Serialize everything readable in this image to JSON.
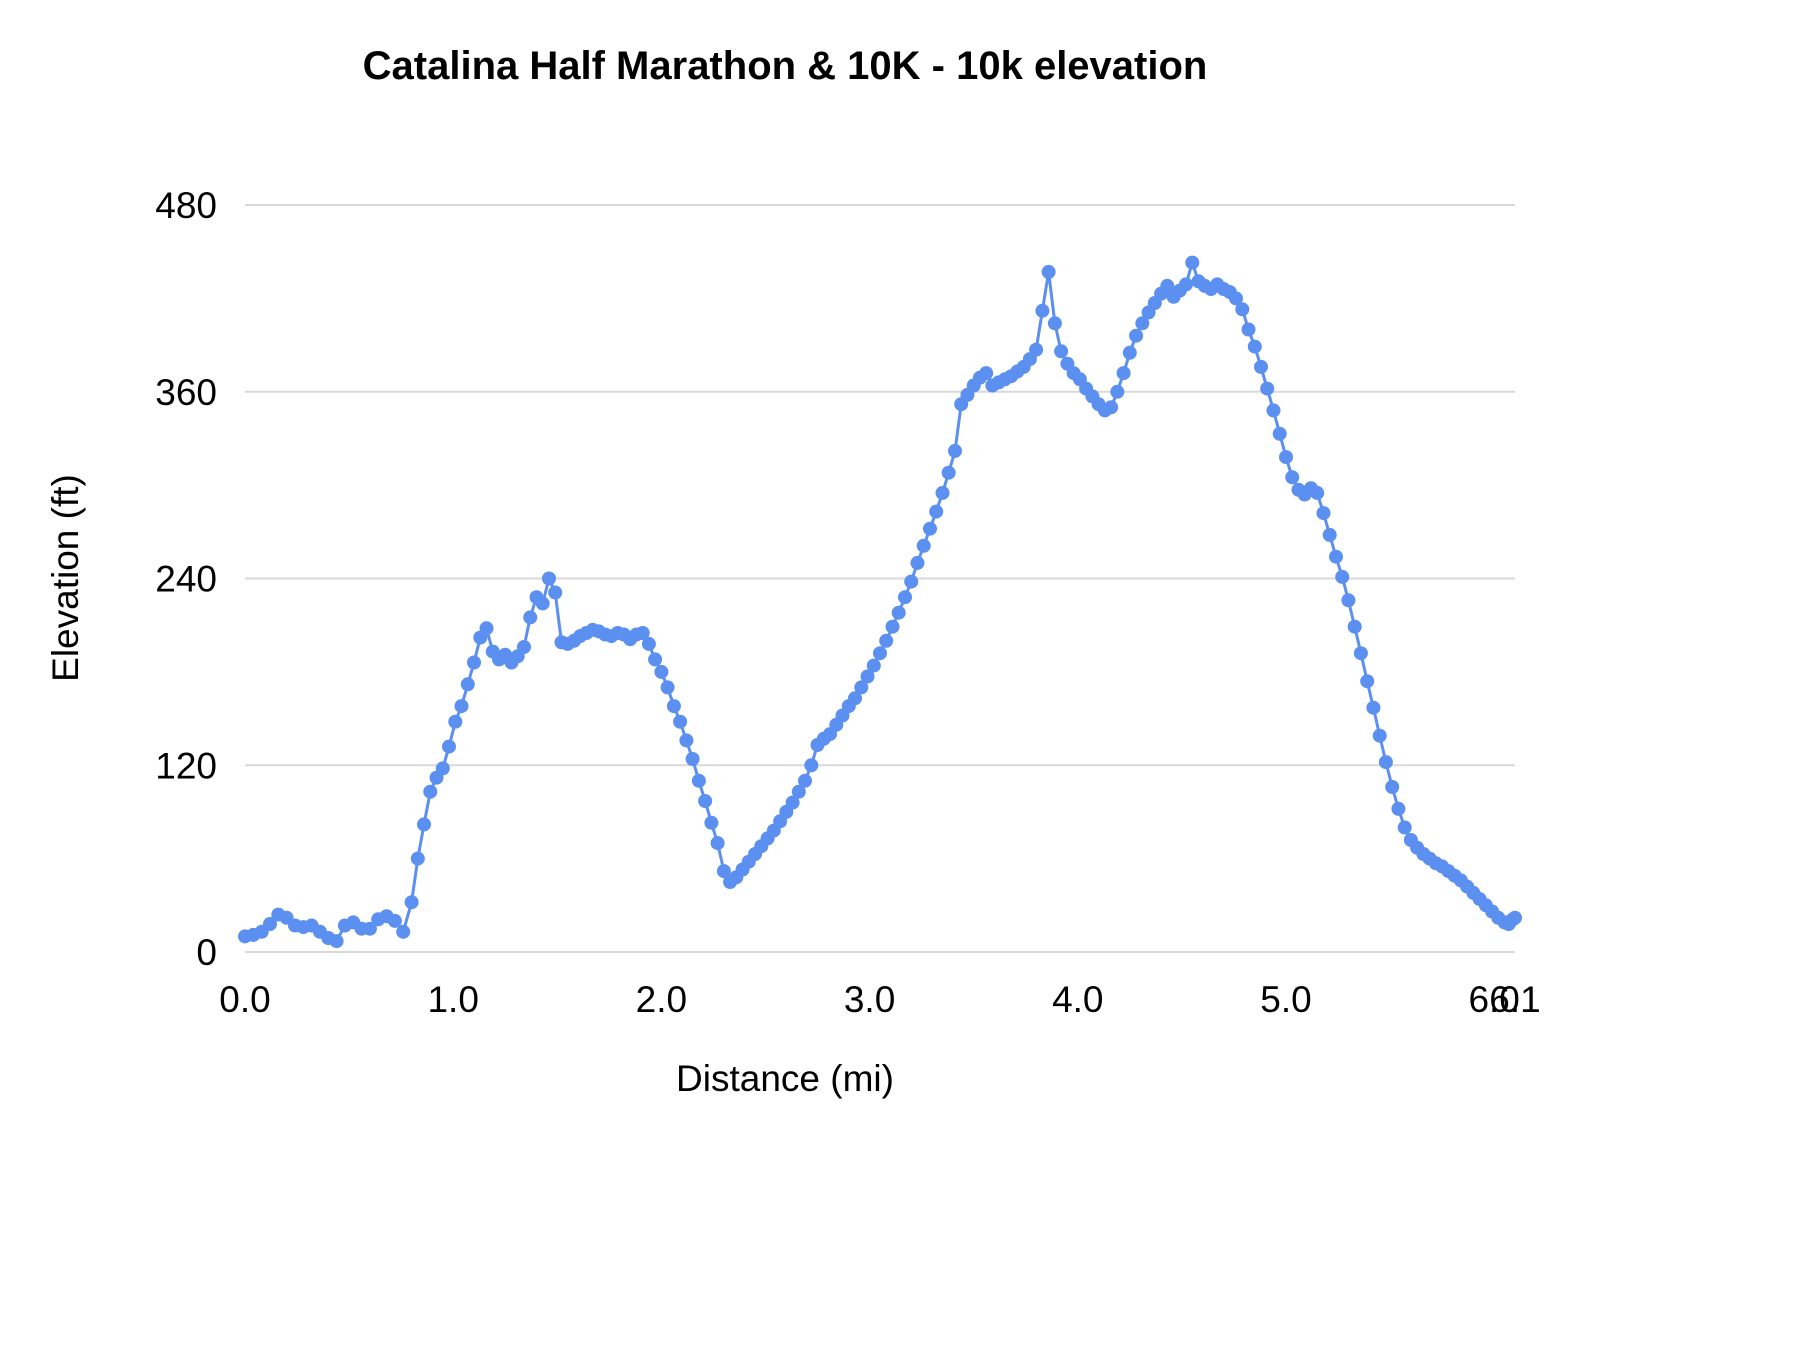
{
  "chart_data": {
    "type": "line",
    "title": "Catalina Half Marathon & 10K - 10k elevation",
    "xlabel": "Distance (mi)",
    "ylabel": "Elevation (ft)",
    "xlim": [
      0,
      6.1
    ],
    "ylim": [
      0,
      480
    ],
    "x_ticks": [
      {
        "v": 0.0,
        "label": "0.0"
      },
      {
        "v": 1.0,
        "label": "1.0"
      },
      {
        "v": 2.0,
        "label": "2.0"
      },
      {
        "v": 3.0,
        "label": "3.0"
      },
      {
        "v": 4.0,
        "label": "4.0"
      },
      {
        "v": 5.0,
        "label": "5.0"
      },
      {
        "v": 6.0,
        "label": "6.0"
      },
      {
        "v": 6.1,
        "label": "6.1"
      }
    ],
    "y_ticks": [
      0,
      120,
      240,
      360,
      480
    ],
    "grid": true,
    "grid_color": "#d9d9d9",
    "legend": "none",
    "line_color": "#5b8ff0",
    "marker": "circle",
    "marker_radius": 7,
    "points": [
      [
        0.0,
        10
      ],
      [
        0.04,
        11
      ],
      [
        0.08,
        13
      ],
      [
        0.12,
        18
      ],
      [
        0.16,
        24
      ],
      [
        0.2,
        22
      ],
      [
        0.24,
        17
      ],
      [
        0.28,
        16
      ],
      [
        0.32,
        17
      ],
      [
        0.36,
        13
      ],
      [
        0.4,
        9
      ],
      [
        0.44,
        7
      ],
      [
        0.48,
        17
      ],
      [
        0.52,
        19
      ],
      [
        0.56,
        15
      ],
      [
        0.6,
        15
      ],
      [
        0.64,
        21
      ],
      [
        0.68,
        23
      ],
      [
        0.72,
        20
      ],
      [
        0.76,
        13
      ],
      [
        0.8,
        32
      ],
      [
        0.83,
        60
      ],
      [
        0.86,
        82
      ],
      [
        0.89,
        103
      ],
      [
        0.92,
        112
      ],
      [
        0.95,
        118
      ],
      [
        0.98,
        132
      ],
      [
        1.01,
        148
      ],
      [
        1.04,
        158
      ],
      [
        1.07,
        172
      ],
      [
        1.1,
        186
      ],
      [
        1.13,
        202
      ],
      [
        1.16,
        208
      ],
      [
        1.19,
        193
      ],
      [
        1.22,
        188
      ],
      [
        1.25,
        191
      ],
      [
        1.28,
        186
      ],
      [
        1.31,
        190
      ],
      [
        1.34,
        196
      ],
      [
        1.37,
        215
      ],
      [
        1.4,
        228
      ],
      [
        1.43,
        224
      ],
      [
        1.46,
        240
      ],
      [
        1.49,
        231
      ],
      [
        1.52,
        199
      ],
      [
        1.55,
        198
      ],
      [
        1.58,
        200
      ],
      [
        1.61,
        203
      ],
      [
        1.64,
        205
      ],
      [
        1.67,
        207
      ],
      [
        1.7,
        206
      ],
      [
        1.73,
        204
      ],
      [
        1.76,
        203
      ],
      [
        1.79,
        205
      ],
      [
        1.82,
        204
      ],
      [
        1.85,
        201
      ],
      [
        1.88,
        204
      ],
      [
        1.91,
        205
      ],
      [
        1.94,
        198
      ],
      [
        1.97,
        188
      ],
      [
        2.0,
        180
      ],
      [
        2.03,
        170
      ],
      [
        2.06,
        158
      ],
      [
        2.09,
        148
      ],
      [
        2.12,
        136
      ],
      [
        2.15,
        124
      ],
      [
        2.18,
        110
      ],
      [
        2.21,
        97
      ],
      [
        2.24,
        83
      ],
      [
        2.27,
        70
      ],
      [
        2.3,
        52
      ],
      [
        2.33,
        45
      ],
      [
        2.36,
        48
      ],
      [
        2.39,
        53
      ],
      [
        2.42,
        58
      ],
      [
        2.45,
        63
      ],
      [
        2.48,
        68
      ],
      [
        2.51,
        73
      ],
      [
        2.54,
        78
      ],
      [
        2.57,
        84
      ],
      [
        2.6,
        90
      ],
      [
        2.63,
        96
      ],
      [
        2.66,
        103
      ],
      [
        2.69,
        110
      ],
      [
        2.72,
        120
      ],
      [
        2.75,
        133
      ],
      [
        2.78,
        137
      ],
      [
        2.81,
        140
      ],
      [
        2.84,
        146
      ],
      [
        2.87,
        152
      ],
      [
        2.9,
        158
      ],
      [
        2.93,
        163
      ],
      [
        2.96,
        170
      ],
      [
        2.99,
        177
      ],
      [
        3.02,
        184
      ],
      [
        3.05,
        192
      ],
      [
        3.08,
        200
      ],
      [
        3.11,
        209
      ],
      [
        3.14,
        218
      ],
      [
        3.17,
        228
      ],
      [
        3.2,
        238
      ],
      [
        3.23,
        250
      ],
      [
        3.26,
        261
      ],
      [
        3.29,
        272
      ],
      [
        3.32,
        283
      ],
      [
        3.35,
        295
      ],
      [
        3.38,
        308
      ],
      [
        3.41,
        322
      ],
      [
        3.44,
        352
      ],
      [
        3.47,
        358
      ],
      [
        3.5,
        364
      ],
      [
        3.53,
        369
      ],
      [
        3.56,
        372
      ],
      [
        3.59,
        364
      ],
      [
        3.62,
        366
      ],
      [
        3.65,
        368
      ],
      [
        3.68,
        370
      ],
      [
        3.71,
        373
      ],
      [
        3.74,
        376
      ],
      [
        3.77,
        381
      ],
      [
        3.8,
        387
      ],
      [
        3.83,
        412
      ],
      [
        3.86,
        437
      ],
      [
        3.89,
        404
      ],
      [
        3.92,
        386
      ],
      [
        3.95,
        378
      ],
      [
        3.98,
        372
      ],
      [
        4.01,
        368
      ],
      [
        4.04,
        362
      ],
      [
        4.07,
        357
      ],
      [
        4.1,
        352
      ],
      [
        4.13,
        348
      ],
      [
        4.16,
        350
      ],
      [
        4.19,
        360
      ],
      [
        4.22,
        372
      ],
      [
        4.25,
        385
      ],
      [
        4.28,
        396
      ],
      [
        4.31,
        404
      ],
      [
        4.34,
        411
      ],
      [
        4.37,
        417
      ],
      [
        4.4,
        423
      ],
      [
        4.43,
        428
      ],
      [
        4.46,
        421
      ],
      [
        4.49,
        425
      ],
      [
        4.52,
        429
      ],
      [
        4.55,
        443
      ],
      [
        4.58,
        431
      ],
      [
        4.61,
        428
      ],
      [
        4.64,
        426
      ],
      [
        4.67,
        429
      ],
      [
        4.7,
        426
      ],
      [
        4.73,
        424
      ],
      [
        4.76,
        420
      ],
      [
        4.79,
        413
      ],
      [
        4.82,
        400
      ],
      [
        4.85,
        389
      ],
      [
        4.88,
        376
      ],
      [
        4.91,
        362
      ],
      [
        4.94,
        348
      ],
      [
        4.97,
        333
      ],
      [
        5.0,
        318
      ],
      [
        5.03,
        305
      ],
      [
        5.06,
        297
      ],
      [
        5.09,
        294
      ],
      [
        5.12,
        298
      ],
      [
        5.15,
        295
      ],
      [
        5.18,
        282
      ],
      [
        5.21,
        268
      ],
      [
        5.24,
        254
      ],
      [
        5.27,
        241
      ],
      [
        5.3,
        226
      ],
      [
        5.33,
        209
      ],
      [
        5.36,
        192
      ],
      [
        5.39,
        174
      ],
      [
        5.42,
        157
      ],
      [
        5.45,
        139
      ],
      [
        5.48,
        122
      ],
      [
        5.51,
        106
      ],
      [
        5.54,
        92
      ],
      [
        5.57,
        80
      ],
      [
        5.6,
        72
      ],
      [
        5.63,
        67
      ],
      [
        5.66,
        63
      ],
      [
        5.69,
        60
      ],
      [
        5.72,
        57
      ],
      [
        5.75,
        55
      ],
      [
        5.78,
        52
      ],
      [
        5.81,
        49
      ],
      [
        5.84,
        46
      ],
      [
        5.87,
        42
      ],
      [
        5.9,
        38
      ],
      [
        5.93,
        34
      ],
      [
        5.96,
        30
      ],
      [
        5.99,
        26
      ],
      [
        6.02,
        22
      ],
      [
        6.05,
        19
      ],
      [
        6.07,
        18
      ],
      [
        6.09,
        21
      ],
      [
        6.1,
        22
      ]
    ]
  }
}
